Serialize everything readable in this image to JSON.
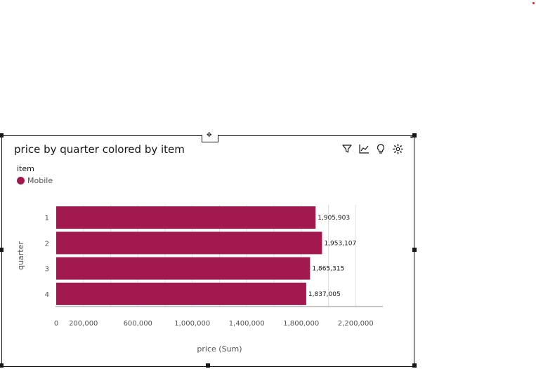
{
  "widget": {
    "title": "price by quarter colored by item",
    "move_handle_icon": "move-icon",
    "toolbar": [
      {
        "name": "filter-icon"
      },
      {
        "name": "trend-icon"
      },
      {
        "name": "insight-bulb-icon"
      },
      {
        "name": "settings-gear-icon"
      }
    ]
  },
  "legend": {
    "title": "item",
    "items": [
      {
        "label": "Mobile",
        "color": "#a2194f"
      }
    ]
  },
  "chart_data": {
    "type": "bar",
    "orientation": "horizontal",
    "categories": [
      "1",
      "2",
      "3",
      "4"
    ],
    "series": [
      {
        "name": "Mobile",
        "color": "#a2194f",
        "values": [
          1905903,
          1953107,
          1865315,
          1837005
        ]
      }
    ],
    "data_labels": [
      "1,905,903",
      "1,953,107",
      "1,865,315",
      "1,837,005"
    ],
    "x_ticks": [
      0,
      200000,
      600000,
      1000000,
      1400000,
      1800000,
      2200000
    ],
    "x_tick_labels": [
      "0",
      "200,000",
      "600,000",
      "1,000,000",
      "1,400,000",
      "1,800,000",
      "2,200,000"
    ],
    "xlim": [
      0,
      2400000
    ],
    "xlabel": "price (Sum)",
    "ylabel": "quarter",
    "grid": true,
    "legend_position": "top-left"
  }
}
